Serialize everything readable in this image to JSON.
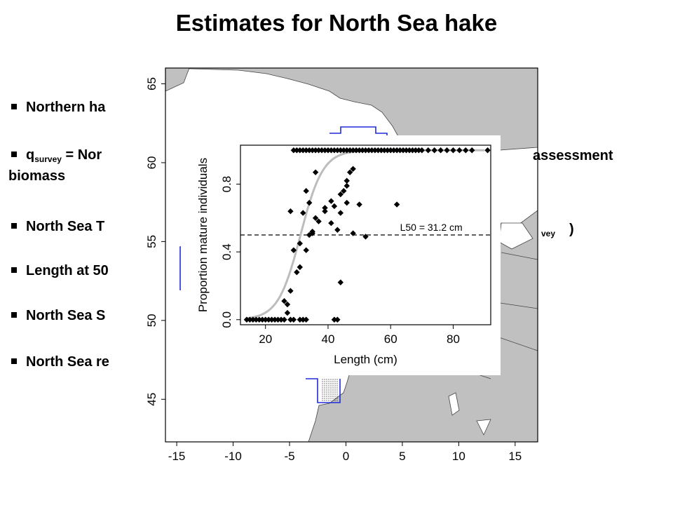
{
  "slide": {
    "title": "Estimates for North Sea hake"
  },
  "bullets": [
    {
      "id": "b1",
      "text": "Northern ha"
    },
    {
      "id": "b2",
      "q": "q",
      "q_sub": "survey",
      "text": " = Nor",
      "right": "assessment",
      "cont": "biomass"
    },
    {
      "id": "b3",
      "text": "North Sea T",
      "right_sub": "vey",
      "right_close": ")"
    },
    {
      "id": "b4",
      "text": "Length at 50"
    },
    {
      "id": "b5",
      "text": "North Sea S"
    },
    {
      "id": "b6",
      "text": "North Sea re"
    }
  ],
  "map": {
    "x_ticks": [
      "-15",
      "-10",
      "-5",
      "0",
      "5",
      "10",
      "15"
    ],
    "y_ticks": [
      "45",
      "50",
      "55",
      "60",
      "65"
    ],
    "x_range": [
      -16,
      17
    ],
    "y_range": [
      42.3,
      66
    ],
    "land_color": "#c0c0c0",
    "box_color": "#1f2bd6"
  },
  "chart_data": {
    "type": "scatter",
    "xlabel": "Length (cm)",
    "ylabel": "Proportion mature individuals",
    "xlim": [
      12,
      92
    ],
    "ylim": [
      -0.03,
      1.03
    ],
    "x_ticks": [
      20,
      40,
      60,
      80
    ],
    "y_ticks": [
      0.0,
      0.4,
      0.8
    ],
    "y_tick_labels": [
      "0.0",
      "0.4",
      "0.8"
    ],
    "annotation": "L50 = 31.2 cm",
    "l50_line_y": 0.5,
    "curve": {
      "L50": 31.2,
      "slope": 0.28,
      "color": "#bdbdbd"
    },
    "points": [
      [
        14,
        0
      ],
      [
        15,
        0
      ],
      [
        16,
        0
      ],
      [
        17,
        0
      ],
      [
        18,
        0
      ],
      [
        19,
        0
      ],
      [
        20,
        0
      ],
      [
        21,
        0
      ],
      [
        22,
        0
      ],
      [
        23,
        0
      ],
      [
        24,
        0
      ],
      [
        25,
        0
      ],
      [
        26,
        0
      ],
      [
        28,
        0
      ],
      [
        29,
        0
      ],
      [
        31,
        0
      ],
      [
        32,
        0
      ],
      [
        33,
        0
      ],
      [
        42,
        0
      ],
      [
        43,
        0
      ],
      [
        27,
        0.04
      ],
      [
        26,
        0.11
      ],
      [
        27,
        0.09
      ],
      [
        28,
        0.17
      ],
      [
        30,
        0.28
      ],
      [
        31,
        0.31
      ],
      [
        29,
        0.41
      ],
      [
        31,
        0.45
      ],
      [
        33,
        0.41
      ],
      [
        35,
        0.51
      ],
      [
        35,
        0.52
      ],
      [
        34,
        0.5
      ],
      [
        36,
        0.6
      ],
      [
        28,
        0.64
      ],
      [
        32,
        0.63
      ],
      [
        34,
        0.69
      ],
      [
        37,
        0.58
      ],
      [
        39,
        0.64
      ],
      [
        42,
        0.67
      ],
      [
        41,
        0.7
      ],
      [
        44,
        0.74
      ],
      [
        45,
        0.76
      ],
      [
        46,
        0.79
      ],
      [
        46,
        0.82
      ],
      [
        47,
        0.87
      ],
      [
        48,
        0.89
      ],
      [
        36,
        0.87
      ],
      [
        33,
        0.76
      ],
      [
        39,
        0.66
      ],
      [
        41,
        0.57
      ],
      [
        44,
        0.63
      ],
      [
        46,
        0.69
      ],
      [
        48,
        0.51
      ],
      [
        50,
        0.68
      ],
      [
        52,
        0.49
      ],
      [
        62,
        0.68
      ],
      [
        43,
        0.53
      ],
      [
        44,
        0.22
      ],
      [
        38,
        1
      ],
      [
        39,
        1
      ],
      [
        40,
        1
      ],
      [
        41,
        1
      ],
      [
        42,
        1
      ],
      [
        43,
        1
      ],
      [
        44,
        1
      ],
      [
        45,
        1
      ],
      [
        46,
        1
      ],
      [
        47,
        1
      ],
      [
        48,
        1
      ],
      [
        49,
        1
      ],
      [
        50,
        1
      ],
      [
        51,
        1
      ],
      [
        52,
        1
      ],
      [
        53,
        1
      ],
      [
        54,
        1
      ],
      [
        55,
        1
      ],
      [
        56,
        1
      ],
      [
        57,
        1
      ],
      [
        58,
        1
      ],
      [
        59,
        1
      ],
      [
        60,
        1
      ],
      [
        61,
        1
      ],
      [
        62,
        1
      ],
      [
        63,
        1
      ],
      [
        64,
        1
      ],
      [
        65,
        1
      ],
      [
        66,
        1
      ],
      [
        67,
        1
      ],
      [
        68,
        1
      ],
      [
        69,
        1
      ],
      [
        70,
        1
      ],
      [
        72,
        1
      ],
      [
        74,
        1
      ],
      [
        76,
        1
      ],
      [
        78,
        1
      ],
      [
        80,
        1
      ],
      [
        82,
        1
      ],
      [
        84,
        1
      ],
      [
        86,
        1
      ],
      [
        91,
        1
      ],
      [
        29,
        1
      ],
      [
        30,
        1
      ],
      [
        31,
        1
      ],
      [
        32,
        1
      ],
      [
        33,
        1
      ],
      [
        34,
        1
      ],
      [
        35,
        1
      ],
      [
        36,
        1
      ],
      [
        37,
        1
      ]
    ]
  }
}
